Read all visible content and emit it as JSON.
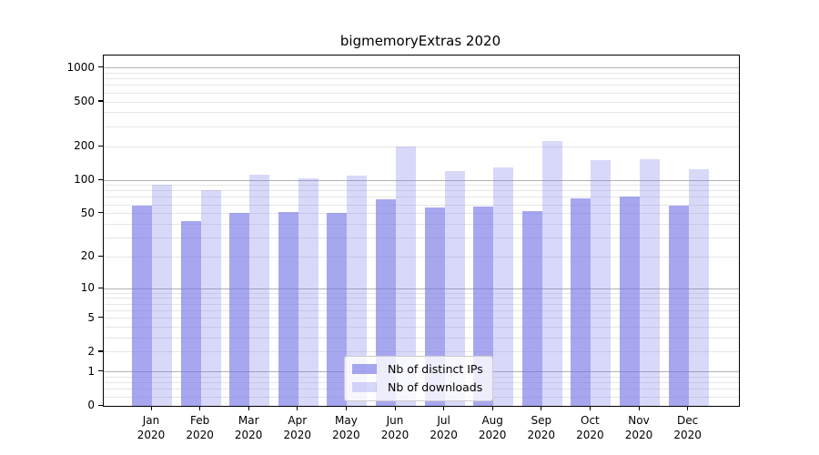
{
  "title": "bigmemoryExtras 2020",
  "legend": {
    "items": [
      {
        "label": "Nb of distinct IPs",
        "color": "rgba(116,116,232,0.63)"
      },
      {
        "label": "Nb of downloads",
        "color": "rgba(116,116,232,0.28)"
      }
    ]
  },
  "chart_data": {
    "type": "bar",
    "title": "bigmemoryExtras 2020",
    "categories": [
      "Jan 2020",
      "Feb 2020",
      "Mar 2020",
      "Apr 2020",
      "May 2020",
      "Jun 2020",
      "Jul 2020",
      "Aug 2020",
      "Sep 2020",
      "Oct 2020",
      "Nov 2020",
      "Dec 2020"
    ],
    "x_tick_line1": [
      "Jan",
      "Feb",
      "Mar",
      "Apr",
      "May",
      "Jun",
      "Jul",
      "Aug",
      "Sep",
      "Oct",
      "Nov",
      "Dec"
    ],
    "x_tick_line2": "2020",
    "series": [
      {
        "name": "Nb of distinct IPs",
        "color": "rgba(116,116,232,0.63)",
        "values": [
          59,
          43,
          51,
          52,
          51,
          68,
          57,
          58,
          53,
          69,
          71,
          59
        ]
      },
      {
        "name": "Nb of downloads",
        "color": "rgba(116,116,232,0.28)",
        "values": [
          91,
          82,
          112,
          104,
          109,
          200,
          121,
          131,
          224,
          150,
          154,
          126
        ]
      }
    ],
    "y_axis": {
      "scale": "log1p",
      "tick_labels": [
        "1000",
        "500",
        "200",
        "100",
        "50",
        "20",
        "10",
        "5",
        "2",
        "1",
        "0"
      ],
      "tick_values": [
        1000,
        500,
        200,
        100,
        50,
        20,
        10,
        5,
        2,
        1,
        0
      ],
      "log1p_max": 3.112,
      "ylim": [
        0,
        1294
      ]
    },
    "grid": {
      "major_values": [
        1,
        10,
        100,
        1000
      ],
      "minor_values": [
        0.2,
        0.4,
        0.6,
        0.8,
        2,
        3,
        4,
        5,
        6,
        7,
        8,
        9,
        20,
        30,
        40,
        50,
        60,
        70,
        80,
        90,
        200,
        300,
        400,
        500,
        600,
        700,
        800,
        900
      ],
      "major_color": "#b2b2b2",
      "minor_color": "#e6e6e6"
    },
    "legend_position": "lower center"
  }
}
